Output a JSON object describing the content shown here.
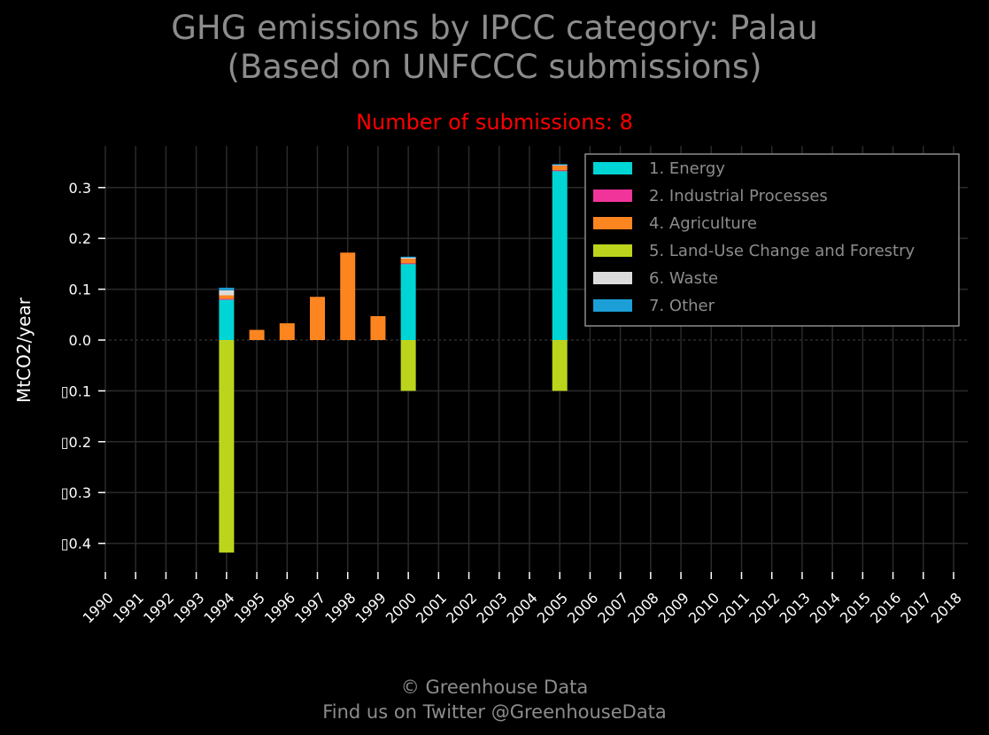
{
  "title_line1": "GHG emissions by IPCC category: Palau",
  "title_line2": "(Based on UNFCCC submissions)",
  "subtitle": "Number of submissions: 8",
  "footer_line1": "© Greenhouse Data",
  "footer_line2": "Find us on Twitter @GreenhouseData",
  "colors": {
    "background": "#000000",
    "title": "#8c8c8c",
    "subtitle": "#ff0000",
    "grid": "#2a2a2a",
    "text": "#ffffff"
  },
  "chart_data": {
    "type": "bar",
    "stacked": true,
    "ylabel": "MtCO2/year",
    "ylim": [
      -0.45,
      0.38
    ],
    "yticks": [
      0.3,
      0.2,
      0.1,
      0.0,
      -0.1,
      -0.2,
      -0.3,
      -0.4
    ],
    "ytick_labels": [
      "0.3",
      "0.2",
      "0.1",
      "0.0",
      "▯0.1",
      "▯0.2",
      "▯0.3",
      "▯0.4"
    ],
    "grid": true,
    "legend_position": "top-right",
    "categories": [
      "1990",
      "1991",
      "1992",
      "1993",
      "1994",
      "1995",
      "1996",
      "1997",
      "1998",
      "1999",
      "2000",
      "2001",
      "2002",
      "2003",
      "2004",
      "2005",
      "2006",
      "2007",
      "2008",
      "2009",
      "2010",
      "2011",
      "2012",
      "2013",
      "2014",
      "2015",
      "2016",
      "2017",
      "2018"
    ],
    "series": [
      {
        "name": "1. Energy",
        "color": "#00d5d5",
        "values": [
          0,
          0,
          0,
          0,
          0.08,
          0,
          0,
          0,
          0,
          0,
          0.15,
          0,
          0,
          0,
          0,
          0.333,
          0,
          0,
          0,
          0,
          0,
          0,
          0,
          0,
          0,
          0,
          0,
          0,
          0
        ]
      },
      {
        "name": "2. Industrial Processes",
        "color": "#f0349a",
        "values": [
          0,
          0,
          0,
          0,
          0.001,
          0,
          0,
          0,
          0,
          0,
          0.001,
          0,
          0,
          0,
          0,
          0.001,
          0,
          0,
          0,
          0,
          0,
          0,
          0,
          0,
          0,
          0,
          0,
          0,
          0
        ]
      },
      {
        "name": "4. Agriculture",
        "color": "#fd8520",
        "values": [
          0,
          0,
          0,
          0,
          0.007,
          0.02,
          0.033,
          0.085,
          0.172,
          0.047,
          0.009,
          0,
          0,
          0,
          0,
          0.009,
          0,
          0,
          0,
          0,
          0,
          0,
          0,
          0,
          0,
          0,
          0,
          0,
          0
        ]
      },
      {
        "name": "5. Land-Use Change and Forestry",
        "color": "#bcd51c",
        "values": [
          0,
          0,
          0,
          0,
          -0.418,
          0,
          0,
          0,
          0,
          0,
          -0.1,
          0,
          0,
          0,
          0,
          -0.1,
          0,
          0,
          0,
          0,
          0,
          0,
          0,
          0,
          0,
          0,
          0,
          0,
          0
        ]
      },
      {
        "name": "6. Waste",
        "color": "#dcdcdc",
        "values": [
          0,
          0,
          0,
          0,
          0.01,
          0,
          0,
          0,
          0,
          0,
          0.002,
          0,
          0,
          0,
          0,
          0.002,
          0,
          0,
          0,
          0,
          0,
          0,
          0,
          0,
          0,
          0,
          0,
          0,
          0
        ]
      },
      {
        "name": "7. Other",
        "color": "#1b9fd6",
        "values": [
          0,
          0,
          0,
          0,
          0.005,
          0,
          0,
          0,
          0,
          0,
          0.002,
          0,
          0,
          0,
          0,
          0.001,
          0,
          0,
          0,
          0,
          0,
          0,
          0,
          0,
          0,
          0,
          0,
          0,
          0
        ]
      }
    ]
  }
}
